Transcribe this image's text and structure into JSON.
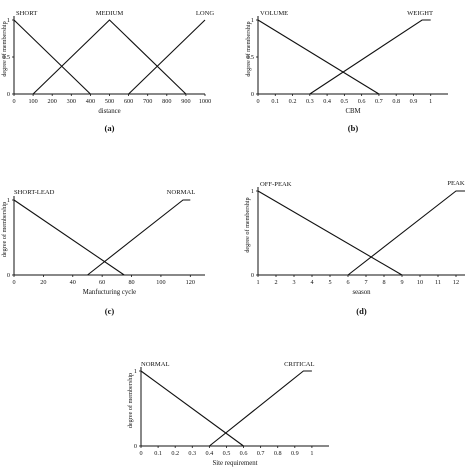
{
  "chart_data": [
    {
      "id": "a",
      "type": "line",
      "panel_label": "(a)",
      "xlabel": "distance",
      "ylabel": "degree of membership",
      "xlim": [
        0,
        1000
      ],
      "ylim": [
        0,
        1
      ],
      "x_ticks": [
        0,
        100,
        200,
        300,
        400,
        500,
        600,
        700,
        800,
        900,
        1000
      ],
      "x_tick_labels": [
        "0",
        "100",
        "200",
        "300",
        "400",
        "500",
        "600",
        "700",
        "800",
        "900",
        "1000"
      ],
      "y_ticks": [
        0,
        0.5,
        1
      ],
      "y_tick_labels": [
        "0",
        "0.5",
        "1"
      ],
      "series": [
        {
          "name": "SHORT",
          "x": [
            0,
            400
          ],
          "y": [
            1,
            0
          ]
        },
        {
          "name": "MEDIUM",
          "x": [
            100,
            500,
            900
          ],
          "y": [
            0,
            1,
            0
          ]
        },
        {
          "name": "LONG",
          "x": [
            600,
            1000
          ],
          "y": [
            0,
            1
          ]
        }
      ]
    },
    {
      "id": "b",
      "type": "line",
      "panel_label": "(b)",
      "xlabel": "CBM",
      "ylabel": "degree of membership",
      "xlim": [
        0,
        1.1
      ],
      "ylim": [
        0,
        1
      ],
      "x_ticks": [
        0,
        0.1,
        0.2,
        0.3,
        0.4,
        0.5,
        0.6,
        0.7,
        0.8,
        0.9,
        1
      ],
      "x_tick_labels": [
        "0",
        "0.1",
        "0.2",
        "0.3",
        "0.4",
        "0.5",
        "0.6",
        "0.7",
        "0.8",
        "0.9",
        "1"
      ],
      "y_ticks": [
        0,
        0.5,
        1
      ],
      "y_tick_labels": [
        "0",
        "0.5",
        "1"
      ],
      "series": [
        {
          "name": "VOLUME",
          "x": [
            0,
            0.7
          ],
          "y": [
            1,
            0
          ]
        },
        {
          "name": "WEIGHT",
          "x": [
            0.3,
            0.95,
            1.0
          ],
          "y": [
            0,
            1,
            1
          ]
        }
      ]
    },
    {
      "id": "c",
      "type": "line",
      "panel_label": "(c)",
      "xlabel": "Manfucturing cycle",
      "ylabel": "degree of membership",
      "xlim": [
        0,
        130
      ],
      "ylim": [
        0,
        1
      ],
      "x_ticks": [
        0,
        20,
        40,
        60,
        80,
        100,
        120
      ],
      "x_tick_labels": [
        "0",
        "20",
        "40",
        "60",
        "80",
        "100",
        "120"
      ],
      "y_ticks": [
        0,
        1
      ],
      "y_tick_labels": [
        "0",
        "1"
      ],
      "series": [
        {
          "name": "SHORT-LEAD",
          "x": [
            0,
            75
          ],
          "y": [
            1,
            0
          ]
        },
        {
          "name": "NORMAL",
          "x": [
            50,
            115,
            120
          ],
          "y": [
            0,
            1,
            1
          ]
        }
      ]
    },
    {
      "id": "d",
      "type": "line",
      "panel_label": "(d)",
      "xlabel": "season",
      "ylabel": "degree of membership",
      "xlim": [
        1,
        12.5
      ],
      "ylim": [
        0,
        1
      ],
      "x_ticks": [
        1,
        2,
        3,
        4,
        5,
        6,
        7,
        8,
        9,
        10,
        11,
        12
      ],
      "x_tick_labels": [
        "1",
        "2",
        "3",
        "4",
        "5",
        "6",
        "7",
        "8",
        "9",
        "10",
        "11",
        "12"
      ],
      "y_ticks": [
        0,
        1
      ],
      "y_tick_labels": [
        "0",
        "1"
      ],
      "series": [
        {
          "name": "OFF-PEAK",
          "x": [
            1,
            9
          ],
          "y": [
            1,
            0
          ]
        },
        {
          "name": "PEAK",
          "x": [
            6,
            12,
            12.5
          ],
          "y": [
            0,
            1,
            1
          ]
        }
      ]
    },
    {
      "id": "e",
      "type": "line",
      "panel_label": "",
      "xlabel": "Site requirement",
      "ylabel": "degree of membership",
      "xlim": [
        0,
        1.1
      ],
      "ylim": [
        0,
        1
      ],
      "x_ticks": [
        0,
        0.1,
        0.2,
        0.3,
        0.4,
        0.5,
        0.6,
        0.7,
        0.8,
        0.9,
        1
      ],
      "x_tick_labels": [
        "0",
        "0.1",
        "0.2",
        "0.3",
        "0.4",
        "0.5",
        "0.6",
        "0.7",
        "0.8",
        "0.9",
        "1"
      ],
      "y_ticks": [
        0,
        1
      ],
      "y_tick_labels": [
        "0",
        "1"
      ],
      "series": [
        {
          "name": "NORMAL",
          "x": [
            0,
            0.6
          ],
          "y": [
            1,
            0
          ]
        },
        {
          "name": "CRITICAL",
          "x": [
            0.4,
            0.95,
            1.0
          ],
          "y": [
            0,
            1,
            1
          ]
        }
      ]
    }
  ]
}
